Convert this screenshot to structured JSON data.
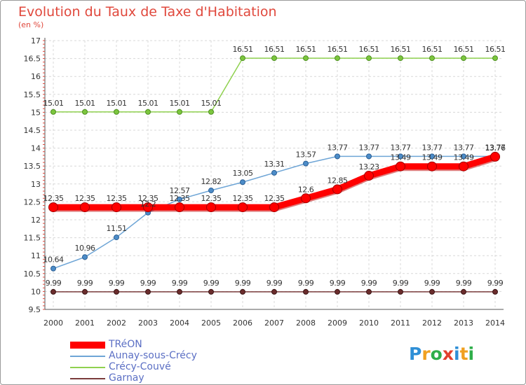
{
  "chart_data": {
    "type": "line",
    "title": "Evolution du Taux de Taxe d'Habitation",
    "subtitle": "(en %)",
    "x": [
      "2000",
      "2001",
      "2002",
      "2003",
      "2004",
      "2005",
      "2006",
      "2007",
      "2008",
      "2009",
      "2010",
      "2011",
      "2012",
      "2013",
      "2014"
    ],
    "ylim": [
      9.5,
      17
    ],
    "yticks": [
      "9.5",
      "10",
      "10.5",
      "11",
      "11.5",
      "12",
      "12.5",
      "13",
      "13.5",
      "14",
      "14.5",
      "15",
      "15.5",
      "16",
      "16.5",
      "17"
    ],
    "grid": true,
    "legend_position": "bottom-left",
    "series": [
      {
        "name": "TRéON",
        "color": "#ff0000",
        "values": [
          12.35,
          12.35,
          12.35,
          12.35,
          12.35,
          12.35,
          12.35,
          12.35,
          12.6,
          12.85,
          13.23,
          13.49,
          13.49,
          13.49,
          13.76
        ],
        "labels": [
          "12.35",
          "12.35",
          "12.35",
          "12.35",
          "12.35",
          "12.35",
          "12.35",
          "12.35",
          "12.6",
          "12.85",
          "13.23",
          "13.49",
          "13.49",
          "13.49",
          "13.76"
        ]
      },
      {
        "name": "Aunay-sous-Crécy",
        "color": "#6ea5d6",
        "values": [
          10.64,
          10.96,
          11.51,
          12.2,
          12.57,
          12.82,
          13.05,
          13.31,
          13.57,
          13.77,
          13.77,
          13.77,
          13.77,
          13.77,
          13.77
        ],
        "labels": [
          "10.64",
          "10.96",
          "11.51",
          "12.2",
          "12.57",
          "12.82",
          "13.05",
          "13.31",
          "13.57",
          "13.77",
          "13.77",
          "13.77",
          "13.77",
          "13.77",
          "13.77"
        ]
      },
      {
        "name": "Crécy-Couvé",
        "color": "#8fd14f",
        "values": [
          15.01,
          15.01,
          15.01,
          15.01,
          15.01,
          15.01,
          16.51,
          16.51,
          16.51,
          16.51,
          16.51,
          16.51,
          16.51,
          16.51,
          16.51
        ],
        "labels": [
          "15.01",
          "15.01",
          "15.01",
          "15.01",
          "15.01",
          "15.01",
          "16.51",
          "16.51",
          "16.51",
          "16.51",
          "16.51",
          "16.51",
          "16.51",
          "16.51",
          "16.51"
        ]
      },
      {
        "name": "Garnay",
        "color": "#7a3b3b",
        "values": [
          9.99,
          9.99,
          9.99,
          9.99,
          9.99,
          9.99,
          9.99,
          9.99,
          9.99,
          9.99,
          9.99,
          9.99,
          9.99,
          9.99,
          9.99
        ],
        "labels": [
          "9.99",
          "9.99",
          "9.99",
          "9.99",
          "9.99",
          "9.99",
          "9.99",
          "9.99",
          "9.99",
          "9.99",
          "9.99",
          "9.99",
          "9.99",
          "9.99",
          "9.99"
        ]
      }
    ]
  },
  "logo": {
    "text": [
      "P",
      "r",
      "o",
      "x",
      "i",
      "t",
      "i"
    ],
    "colors": [
      "#2f8fd6",
      "#f0a020",
      "#2fae4a",
      "#e2402e",
      "#2f8fd6",
      "#f0a020",
      "#2fae4a"
    ]
  }
}
